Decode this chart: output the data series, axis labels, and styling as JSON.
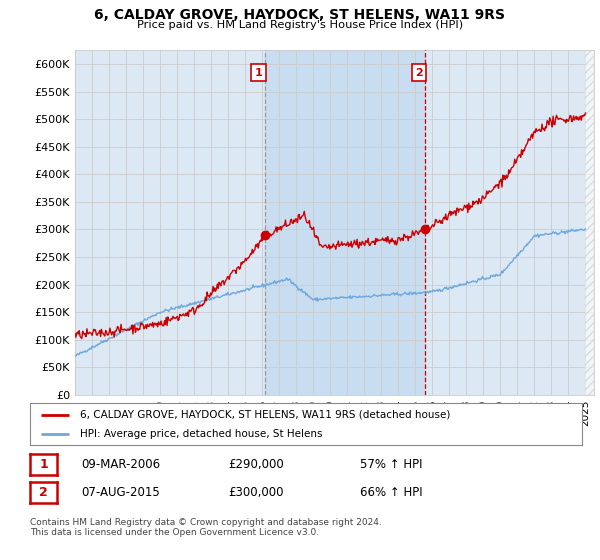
{
  "title": "6, CALDAY GROVE, HAYDOCK, ST HELENS, WA11 9RS",
  "subtitle": "Price paid vs. HM Land Registry's House Price Index (HPI)",
  "ylim": [
    0,
    625000
  ],
  "yticks": [
    0,
    50000,
    100000,
    150000,
    200000,
    250000,
    300000,
    350000,
    400000,
    450000,
    500000,
    550000,
    600000
  ],
  "ytick_labels": [
    "£0",
    "£50K",
    "£100K",
    "£150K",
    "£200K",
    "£250K",
    "£300K",
    "£350K",
    "£400K",
    "£450K",
    "£500K",
    "£550K",
    "£600K"
  ],
  "background_color": "#ffffff",
  "plot_bg_color": "#dce9f5",
  "plot_bg_between": "#c8ddf0",
  "grid_color": "#cccccc",
  "sale1_date_num": 2006.17,
  "sale1_price": 290000,
  "sale1_label": "1",
  "sale2_date_num": 2015.58,
  "sale2_price": 300000,
  "sale2_label": "2",
  "hpi_line_color": "#6fa8dc",
  "price_line_color": "#cc0000",
  "sale_marker_color": "#cc0000",
  "vline1_color": "#aaaaaa",
  "vline2_color": "#cc0000",
  "legend_line1": "6, CALDAY GROVE, HAYDOCK, ST HELENS, WA11 9RS (detached house)",
  "legend_line2": "HPI: Average price, detached house, St Helens",
  "table_row1": [
    "1",
    "09-MAR-2006",
    "£290,000",
    "57% ↑ HPI"
  ],
  "table_row2": [
    "2",
    "07-AUG-2015",
    "£300,000",
    "66% ↑ HPI"
  ],
  "footer": "Contains HM Land Registry data © Crown copyright and database right 2024.\nThis data is licensed under the Open Government Licence v3.0.",
  "xmin": 1995,
  "xmax": 2025.5
}
